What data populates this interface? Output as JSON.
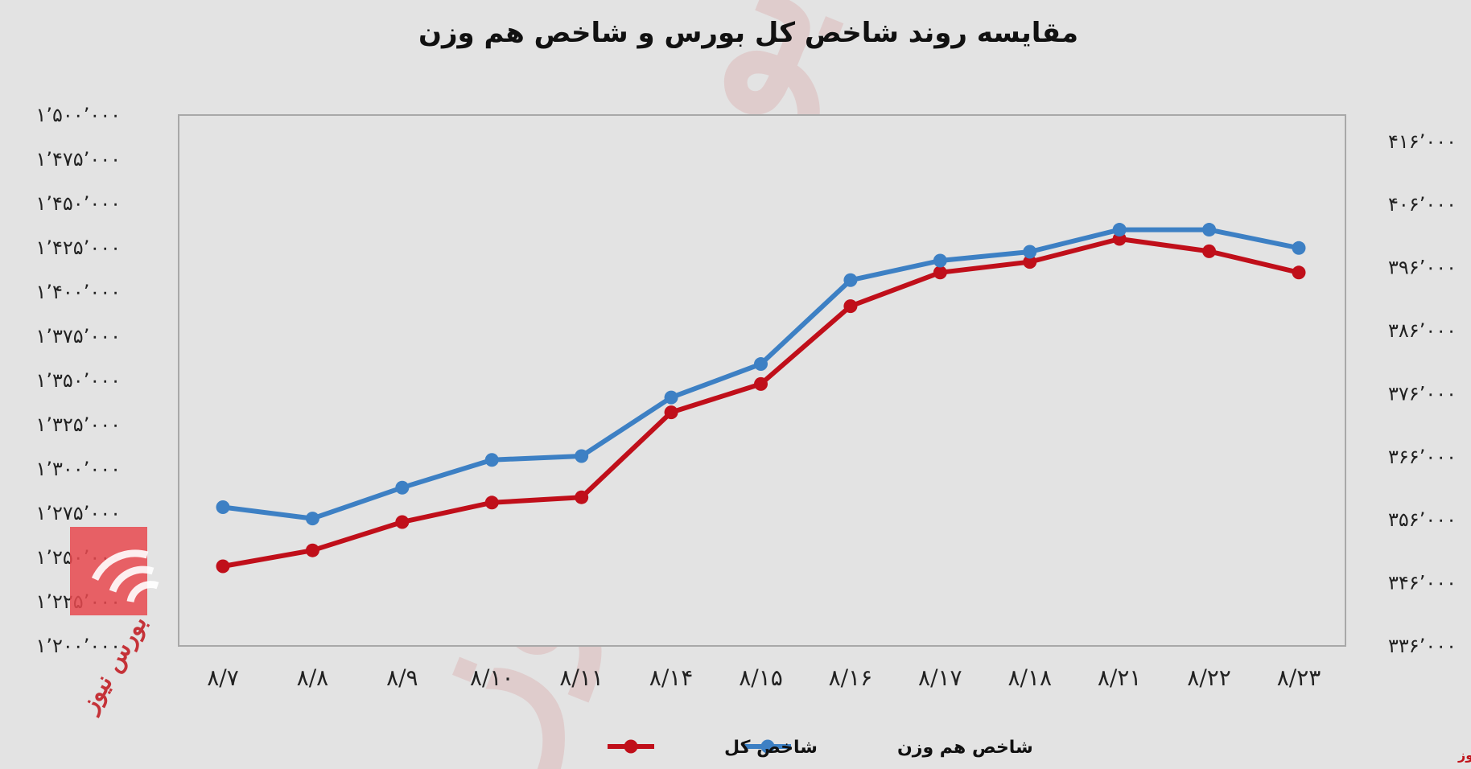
{
  "chart_data": {
    "type": "line",
    "title": "مقایسه روند شاخص کل بورس و شاخص هم وزن",
    "categories": [
      "۸/۷",
      "۸/۸",
      "۸/۹",
      "۸/۱۰",
      "۸/۱۱",
      "۸/۱۴",
      "۸/۱۵",
      "۸/۱۶",
      "۸/۱۷",
      "۸/۱۸",
      "۸/۲۱",
      "۸/۲۲",
      "۸/۲۳"
    ],
    "y_left": {
      "min": 1200000,
      "max": 1500000,
      "ticks": [
        1200000,
        1225000,
        1250000,
        1275000,
        1300000,
        1325000,
        1350000,
        1375000,
        1400000,
        1425000,
        1450000,
        1475000,
        1500000
      ],
      "tick_labels": [
        "۱٬۲۰۰٬۰۰۰",
        "۱٬۲۲۵٬۰۰۰",
        "۱٬۲۵۰٬۰۰۰",
        "۱٬۲۷۵٬۰۰۰",
        "۱٬۳۰۰٬۰۰۰",
        "۱٬۳۲۵٬۰۰۰",
        "۱٬۳۵۰٬۰۰۰",
        "۱٬۳۷۵٬۰۰۰",
        "۱٬۴۰۰٬۰۰۰",
        "۱٬۴۲۵٬۰۰۰",
        "۱٬۴۵۰٬۰۰۰",
        "۱٬۴۷۵٬۰۰۰",
        "۱٬۵۰۰٬۰۰۰"
      ]
    },
    "y_right": {
      "min": 336000,
      "max": 420000,
      "ticks": [
        336000,
        346000,
        356000,
        366000,
        376000,
        386000,
        396000,
        406000,
        416000
      ],
      "tick_labels": [
        "۳۳۶٬۰۰۰",
        "۳۴۶٬۰۰۰",
        "۳۵۶٬۰۰۰",
        "۳۶۶٬۰۰۰",
        "۳۷۶٬۰۰۰",
        "۳۸۶٬۰۰۰",
        "۳۹۶٬۰۰۰",
        "۴۰۶٬۰۰۰",
        "۴۱۶٬۰۰۰"
      ]
    },
    "series": [
      {
        "name": "شاخص کل",
        "axis": "left",
        "color": "#c00f1a",
        "values": [
          1245000,
          1254000,
          1270000,
          1281000,
          1284000,
          1332000,
          1348000,
          1392000,
          1411000,
          1417000,
          1430000,
          1423000,
          1411000
        ]
      },
      {
        "name": "شاخص هم وزن",
        "axis": "right",
        "color": "#3d80c4",
        "values": [
          358000,
          356200,
          361100,
          365500,
          366100,
          375400,
          380700,
          394000,
          397100,
          398500,
          402000,
          402000,
          399100
        ]
      }
    ],
    "legend_position": "bottom",
    "grid": false
  },
  "source_label": "بورس نیوز",
  "watermark_text": "بورس نیوز",
  "logo_text": "بورس نیوز"
}
